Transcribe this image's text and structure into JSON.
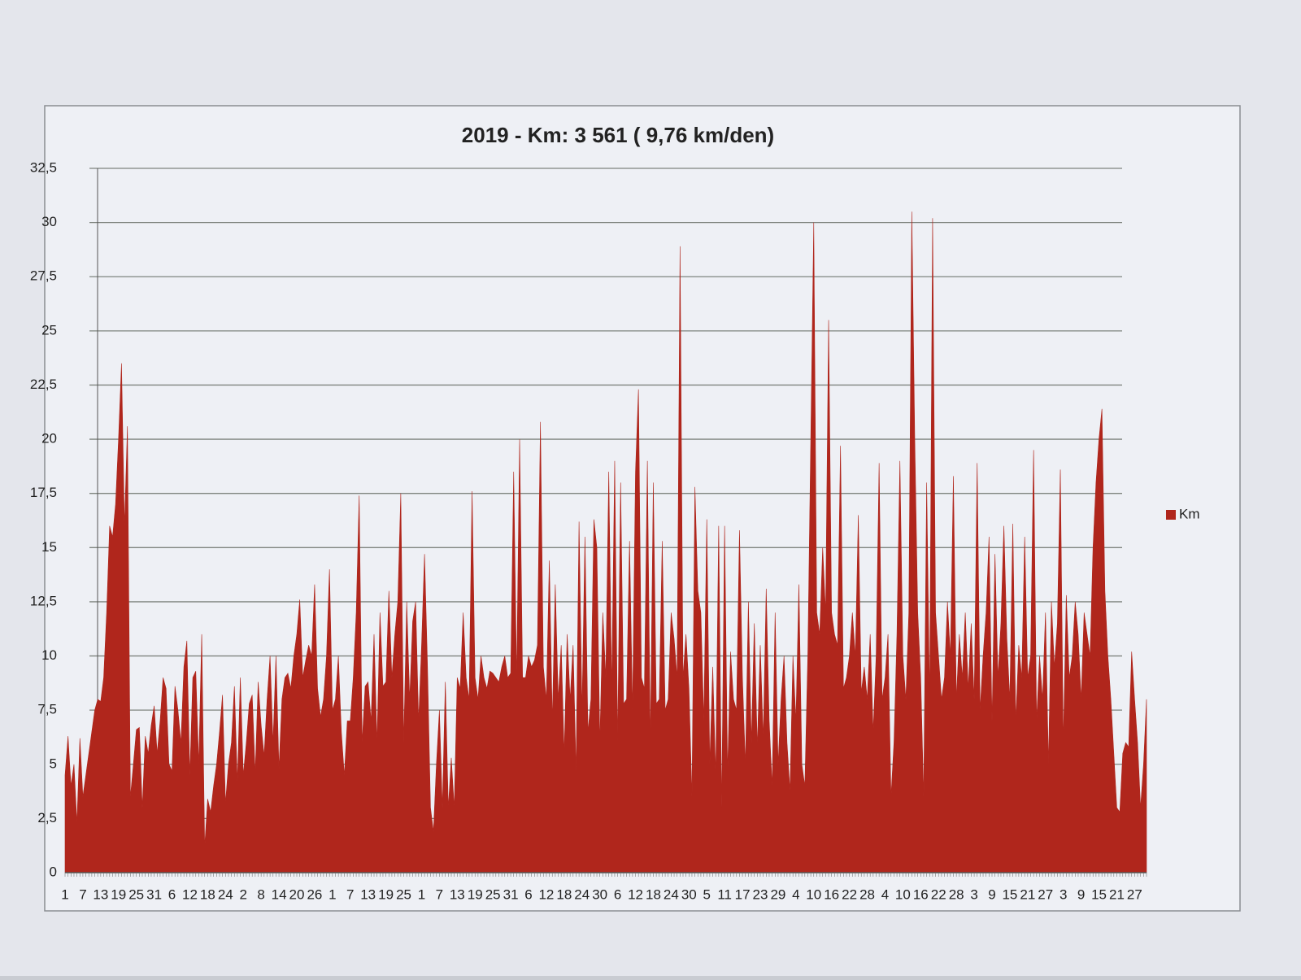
{
  "chart_data": {
    "type": "area",
    "title": "2019 - Km: 3 561 ( 9,76 km/den)",
    "categories": [
      "1",
      null,
      null,
      null,
      null,
      null,
      "7",
      null,
      null,
      null,
      null,
      null,
      "13",
      null,
      null,
      null,
      null,
      null,
      "19",
      null,
      null,
      null,
      null,
      null,
      "25",
      null,
      null,
      null,
      null,
      null,
      "31",
      null,
      null,
      null,
      null,
      null,
      "6",
      null,
      null,
      null,
      null,
      null,
      "12",
      null,
      null,
      null,
      null,
      null,
      "18",
      null,
      null,
      null,
      null,
      null,
      "24",
      null,
      null,
      null,
      null,
      null,
      "2",
      null,
      null,
      null,
      null,
      null,
      "8",
      null,
      null,
      null,
      null,
      null,
      "14",
      null,
      null,
      null,
      null,
      null,
      "20",
      null,
      null,
      null,
      null,
      null,
      "26",
      null,
      null,
      null,
      null,
      null,
      "1",
      null,
      null,
      null,
      null,
      null,
      "7",
      null,
      null,
      null,
      null,
      null,
      "13",
      null,
      null,
      null,
      null,
      null,
      "19",
      null,
      null,
      null,
      null,
      null,
      "25",
      null,
      null,
      null,
      null,
      null,
      "1",
      null,
      null,
      null,
      null,
      null,
      "7",
      null,
      null,
      null,
      null,
      null,
      "13",
      null,
      null,
      null,
      null,
      null,
      "19",
      null,
      null,
      null,
      null,
      null,
      "25",
      null,
      null,
      null,
      null,
      null,
      "31",
      null,
      null,
      null,
      null,
      null,
      "6",
      null,
      null,
      null,
      null,
      null,
      "12",
      null,
      null,
      null,
      null,
      null,
      "18",
      null,
      null,
      null,
      null,
      null,
      "24",
      null,
      null,
      null,
      null,
      null,
      "30",
      null,
      null,
      null,
      null,
      null,
      "6",
      null,
      null,
      null,
      null,
      null,
      "12",
      null,
      null,
      null,
      null,
      null,
      "18",
      null,
      null,
      null,
      null,
      null,
      "24",
      null,
      null,
      null,
      null,
      null,
      "30",
      null,
      null,
      null,
      null,
      null,
      "5",
      null,
      null,
      null,
      null,
      null,
      "11",
      null,
      null,
      null,
      null,
      null,
      "17",
      null,
      null,
      null,
      null,
      null,
      "23",
      null,
      null,
      null,
      null,
      null,
      "29",
      null,
      null,
      null,
      null,
      null,
      "4",
      null,
      null,
      null,
      null,
      null,
      "10",
      null,
      null,
      null,
      null,
      null,
      "16",
      null,
      null,
      null,
      null,
      null,
      "22",
      null,
      null,
      null,
      null,
      null,
      "28",
      null,
      null,
      null,
      null,
      null,
      "4",
      null,
      null,
      null,
      null,
      null,
      "10",
      null,
      null,
      null,
      null,
      null,
      "16",
      null,
      null,
      null,
      null,
      null,
      "22",
      null,
      null,
      null,
      null,
      null,
      "28",
      null,
      null,
      null,
      null,
      null,
      "3",
      null,
      null,
      null,
      null,
      null,
      "9",
      null,
      null,
      null,
      null,
      null,
      "15",
      null,
      null,
      null,
      null,
      null,
      "21",
      null,
      null,
      null,
      null,
      null,
      "27",
      null,
      null,
      null,
      null,
      null,
      "3",
      null,
      null,
      null,
      null,
      null,
      "9",
      null,
      null,
      null,
      null,
      null,
      "15",
      null,
      null,
      null,
      null,
      null,
      "21",
      null,
      null,
      null,
      null,
      null,
      "27",
      null,
      null,
      null,
      null
    ],
    "series": [
      {
        "name": "Km",
        "color": "#b0261c",
        "values": [
          4.5,
          6.3,
          4,
          5,
          2.3,
          6.2,
          3.5,
          4.5,
          5.5,
          6.5,
          7.5,
          8,
          7.9,
          9,
          12,
          16,
          15.5,
          17,
          20,
          23.5,
          16,
          20.6,
          3.5,
          5,
          6.6,
          6.7,
          3,
          6.3,
          5.5,
          6.8,
          7.7,
          5.5,
          7,
          9,
          8.5,
          5,
          4.7,
          8.6,
          7.5,
          6,
          9.5,
          10.7,
          4.5,
          9,
          9.3,
          5,
          11,
          1.2,
          3.4,
          2.8,
          4,
          5,
          6.5,
          8.2,
          3.2,
          5,
          6,
          8.6,
          4.2,
          9,
          4.5,
          6,
          7.8,
          8.2,
          4.6,
          8.8,
          6.8,
          5.4,
          8,
          10,
          6,
          10,
          4.8,
          8,
          9,
          9.2,
          8.5,
          10,
          11,
          12.6,
          9,
          9.8,
          10.5,
          10,
          13.3,
          8.5,
          7.2,
          8,
          10,
          14,
          7.5,
          8,
          10,
          6.5,
          4.5,
          7,
          7,
          9,
          12,
          17.4,
          6,
          8.6,
          8.8,
          7,
          11,
          6,
          12,
          8.6,
          8.8,
          13,
          9,
          11,
          12.5,
          17.5,
          6,
          12.5,
          8,
          11.6,
          12.5,
          7,
          10.5,
          14.7,
          9.5,
          3,
          1.9,
          5,
          7.5,
          3,
          8.8,
          3,
          5.3,
          3,
          9,
          8.5,
          12,
          9,
          8,
          17.6,
          9,
          8,
          10,
          9,
          8.5,
          9.3,
          9.2,
          9,
          8.8,
          9.5,
          10,
          9,
          9.2,
          18.5,
          8.9,
          20,
          9,
          9,
          10,
          9.5,
          9.8,
          10.5,
          20.8,
          9.5,
          8,
          14.4,
          7,
          13.3,
          8,
          10.5,
          5.5,
          11,
          8,
          10.5,
          4.7,
          16.2,
          7.5,
          15.5,
          6.5,
          8,
          16.3,
          15,
          6,
          12,
          9,
          18.5,
          8.5,
          19,
          6,
          18,
          7.8,
          8,
          15.3,
          7.5,
          18.5,
          22.3,
          9,
          8.5,
          19,
          6,
          18,
          7.8,
          8,
          15.3,
          7.5,
          8,
          12,
          10.8,
          9,
          28.9,
          9,
          11,
          8.5,
          3.5,
          17.8,
          13,
          12,
          7,
          16.3,
          5,
          9.5,
          4.5,
          16,
          3,
          16,
          4.6,
          10.2,
          8,
          7.5,
          15.8,
          9,
          5,
          12.5,
          6,
          11.5,
          5.8,
          10.5,
          6.2,
          13.1,
          7,
          4,
          12,
          5,
          8,
          10,
          6,
          3.8,
          10,
          7,
          13.3,
          5,
          4,
          10,
          20,
          30,
          12,
          11,
          15,
          12,
          25.5,
          12,
          11,
          10.5,
          19.7,
          8.5,
          9,
          10,
          12,
          10,
          16.5,
          8.3,
          9.5,
          8,
          11,
          6.5,
          10,
          18.9,
          8,
          9,
          11,
          3.5,
          6,
          11,
          19,
          10,
          8,
          12,
          30.5,
          20,
          12,
          9,
          3.5,
          18,
          8,
          30.2,
          12,
          10,
          8,
          9,
          12.5,
          10,
          18.3,
          8,
          11,
          9,
          12,
          8.5,
          11.5,
          8,
          18.9,
          7.5,
          10,
          12,
          15.5,
          7,
          14.7,
          9,
          11.5,
          16,
          10.8,
          8,
          16.1,
          7,
          10.5,
          9,
          15.5,
          9,
          10,
          19.5,
          7,
          10,
          8,
          12,
          5,
          12.5,
          9.5,
          11.5,
          18.6,
          6,
          12.8,
          9,
          10,
          12.5,
          11,
          8,
          12,
          11,
          10,
          15,
          18,
          20,
          21.4,
          13,
          10,
          8,
          5.5,
          3,
          2.8,
          5.5,
          6,
          5.8,
          10.2,
          8,
          6,
          3,
          5,
          8
        ]
      }
    ],
    "ylim": [
      0,
      32.5
    ],
    "yticks": [
      0,
      {
        "value": 2.5,
        "label": "2,5"
      },
      5,
      {
        "value": 7.5,
        "label": "7,5"
      },
      10,
      {
        "value": 12.5,
        "label": "12,5"
      },
      15,
      {
        "value": 17.5,
        "label": "17,5"
      },
      20,
      {
        "value": 22.5,
        "label": "22,5"
      },
      25,
      {
        "value": 27.5,
        "label": "27,5"
      },
      30,
      {
        "value": 32.5,
        "label": "32,5"
      }
    ],
    "grid": true,
    "legend": "right"
  }
}
